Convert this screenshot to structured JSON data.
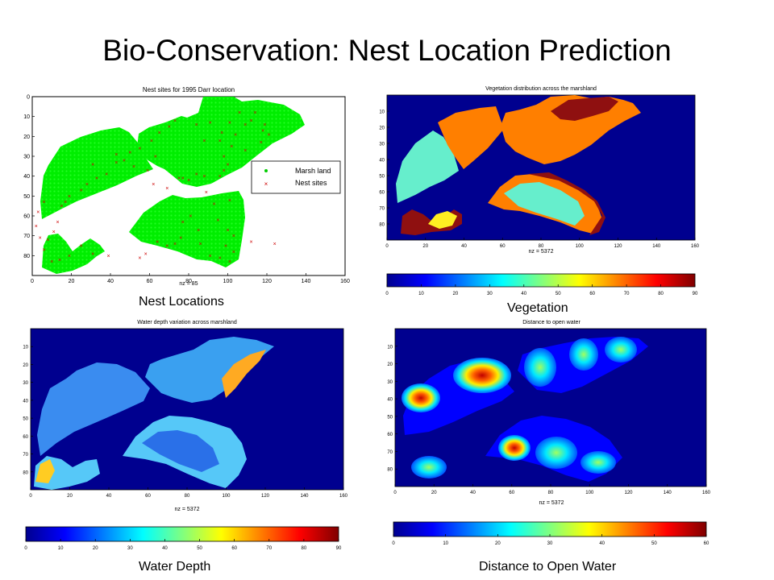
{
  "slide": {
    "title": "Bio-Conservation: Nest Location Prediction"
  },
  "captions": {
    "nest": "Nest Locations",
    "vegetation": "Vegetation",
    "water": "Water Depth",
    "distance": "Distance to Open Water"
  },
  "chart_data": [
    {
      "id": "nest",
      "type": "scatter",
      "title": "Nest sites for 1995 Darr location",
      "xlabel": "nz = 85",
      "xlim": [
        0,
        160
      ],
      "ylim": [
        0,
        90
      ],
      "y_reversed": true,
      "xticks": [
        0,
        20,
        40,
        60,
        80,
        100,
        120,
        140,
        160
      ],
      "yticks": [
        0,
        10,
        20,
        30,
        40,
        50,
        60,
        70,
        80
      ],
      "legend": {
        "placement": "right",
        "entries": [
          {
            "label": "Marsh land",
            "color": "#00ff00",
            "marker": "."
          },
          {
            "label": "Nest sites",
            "color": "#ff0000",
            "marker": "x"
          }
        ]
      },
      "series": [
        {
          "name": "Nest sites",
          "color": "#cc0000",
          "points": [
            [
              47,
              32
            ],
            [
              52,
              35
            ],
            [
              59,
              37
            ],
            [
              62,
              44
            ],
            [
              63,
              30
            ],
            [
              69,
              46
            ],
            [
              75,
              41
            ],
            [
              77,
              41
            ],
            [
              80,
              42
            ],
            [
              101,
              13
            ],
            [
              106,
              8
            ],
            [
              109,
              14
            ],
            [
              112,
              12
            ],
            [
              119,
              14
            ],
            [
              84,
              14
            ],
            [
              88,
              22
            ],
            [
              96,
              22
            ],
            [
              102,
              25
            ],
            [
              98,
              30
            ],
            [
              100,
              34
            ],
            [
              98,
              37
            ],
            [
              96,
              40
            ],
            [
              88,
              40
            ],
            [
              84,
              39
            ],
            [
              89,
              48
            ],
            [
              101,
              52
            ],
            [
              93,
              54
            ],
            [
              95,
              62
            ],
            [
              100,
              67
            ],
            [
              103,
              70
            ],
            [
              112,
              73
            ],
            [
              81,
              60
            ],
            [
              77,
              63
            ],
            [
              76,
              71
            ],
            [
              73,
              74
            ],
            [
              64,
              73
            ],
            [
              58,
              79
            ],
            [
              55,
              81
            ],
            [
              69,
              75
            ],
            [
              86,
              74
            ],
            [
              99,
              75
            ],
            [
              103,
              78
            ],
            [
              96,
              81
            ],
            [
              101,
              83
            ],
            [
              91,
              80
            ],
            [
              10,
              83
            ],
            [
              14,
              82
            ],
            [
              19,
              80
            ],
            [
              25,
              75
            ],
            [
              31,
              79
            ],
            [
              39,
              80
            ],
            [
              8,
              72
            ],
            [
              11,
              68
            ],
            [
              13,
              63
            ],
            [
              15,
              55
            ],
            [
              17,
              53
            ],
            [
              19,
              50
            ],
            [
              25,
              47
            ],
            [
              28,
              44
            ],
            [
              33,
              41
            ],
            [
              38,
              39
            ],
            [
              31,
              34
            ],
            [
              43,
              33
            ],
            [
              43,
              29
            ],
            [
              50,
              28
            ],
            [
              55,
              26
            ],
            [
              61,
              22
            ],
            [
              65,
              18
            ],
            [
              70,
              15
            ],
            [
              73,
              12
            ],
            [
              91,
              13
            ],
            [
              97,
              18
            ],
            [
              104,
              19
            ],
            [
              114,
              8
            ],
            [
              118,
              17
            ],
            [
              121,
              19
            ],
            [
              117,
              23
            ],
            [
              109,
              27
            ],
            [
              6,
              53
            ],
            [
              3,
              58
            ],
            [
              2,
              65
            ],
            [
              4,
              71
            ],
            [
              6,
              77
            ],
            [
              85,
              67
            ],
            [
              124,
              74
            ]
          ]
        }
      ]
    },
    {
      "id": "vegetation",
      "type": "heatmap",
      "title": "Vegetation distribution across the marshland",
      "xlabel": "nz = 5372",
      "xlim": [
        0,
        160
      ],
      "ylim": [
        0,
        90
      ],
      "xticks": [
        0,
        20,
        40,
        60,
        80,
        100,
        120,
        140,
        160
      ],
      "yticks": [
        10,
        20,
        30,
        40,
        50,
        60,
        70,
        80
      ],
      "colorbar": {
        "range": [
          0,
          90
        ],
        "ticks": [
          0,
          10,
          20,
          30,
          40,
          50,
          60,
          70,
          80,
          90
        ]
      }
    },
    {
      "id": "water",
      "type": "heatmap",
      "title": "Water depth variation across marshland",
      "xlabel": "nz = 5372",
      "xlim": [
        0,
        160
      ],
      "ylim": [
        0,
        90
      ],
      "xticks": [
        0,
        20,
        40,
        60,
        80,
        100,
        120,
        140,
        160
      ],
      "yticks": [
        10,
        20,
        30,
        40,
        50,
        60,
        70,
        80
      ],
      "colorbar": {
        "range": [
          0,
          90
        ],
        "ticks": [
          0,
          10,
          20,
          30,
          40,
          50,
          60,
          70,
          80,
          90
        ]
      }
    },
    {
      "id": "distance",
      "type": "heatmap",
      "title": "Distance to open water",
      "xlabel": "nz = 5372",
      "xlim": [
        0,
        160
      ],
      "ylim": [
        0,
        90
      ],
      "xticks": [
        0,
        20,
        40,
        60,
        80,
        100,
        120,
        140,
        160
      ],
      "yticks": [
        10,
        20,
        30,
        40,
        50,
        60,
        70,
        80
      ],
      "colorbar": {
        "range": [
          0,
          60
        ],
        "ticks": [
          0,
          10,
          20,
          30,
          40,
          50,
          60
        ]
      }
    }
  ]
}
